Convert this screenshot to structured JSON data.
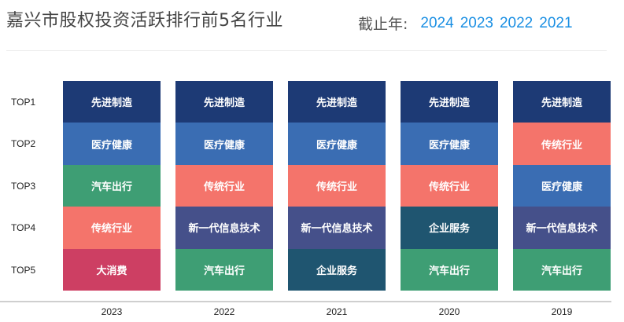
{
  "header": {
    "title": "嘉兴市股权投资活跃排行前5名行业",
    "filter_label": "截止年:",
    "filter_years": [
      "2024",
      "2023",
      "2022",
      "2021"
    ]
  },
  "rank_labels": [
    "TOP1",
    "TOP2",
    "TOP3",
    "TOP4",
    "TOP5"
  ],
  "colors": {
    "先进制造": "#1d3a75",
    "医疗健康": "#3a6db3",
    "汽车出行": "#3e9e74",
    "传统行业": "#f4746b",
    "大消费": "#cd3f63",
    "新一代信息技术": "#45508a",
    "企业服务": "#1f5570"
  },
  "columns": [
    {
      "year": "2023",
      "industries": [
        "先进制造",
        "医疗健康",
        "汽车出行",
        "传统行业",
        "大消费"
      ]
    },
    {
      "year": "2022",
      "industries": [
        "先进制造",
        "医疗健康",
        "传统行业",
        "新一代信息技术",
        "汽车出行"
      ]
    },
    {
      "year": "2021",
      "industries": [
        "先进制造",
        "医疗健康",
        "传统行业",
        "新一代信息技术",
        "企业服务"
      ]
    },
    {
      "year": "2020",
      "industries": [
        "先进制造",
        "医疗健康",
        "传统行业",
        "企业服务",
        "汽车出行"
      ]
    },
    {
      "year": "2019",
      "industries": [
        "先进制造",
        "传统行业",
        "医疗健康",
        "新一代信息技术",
        "汽车出行"
      ]
    }
  ]
}
